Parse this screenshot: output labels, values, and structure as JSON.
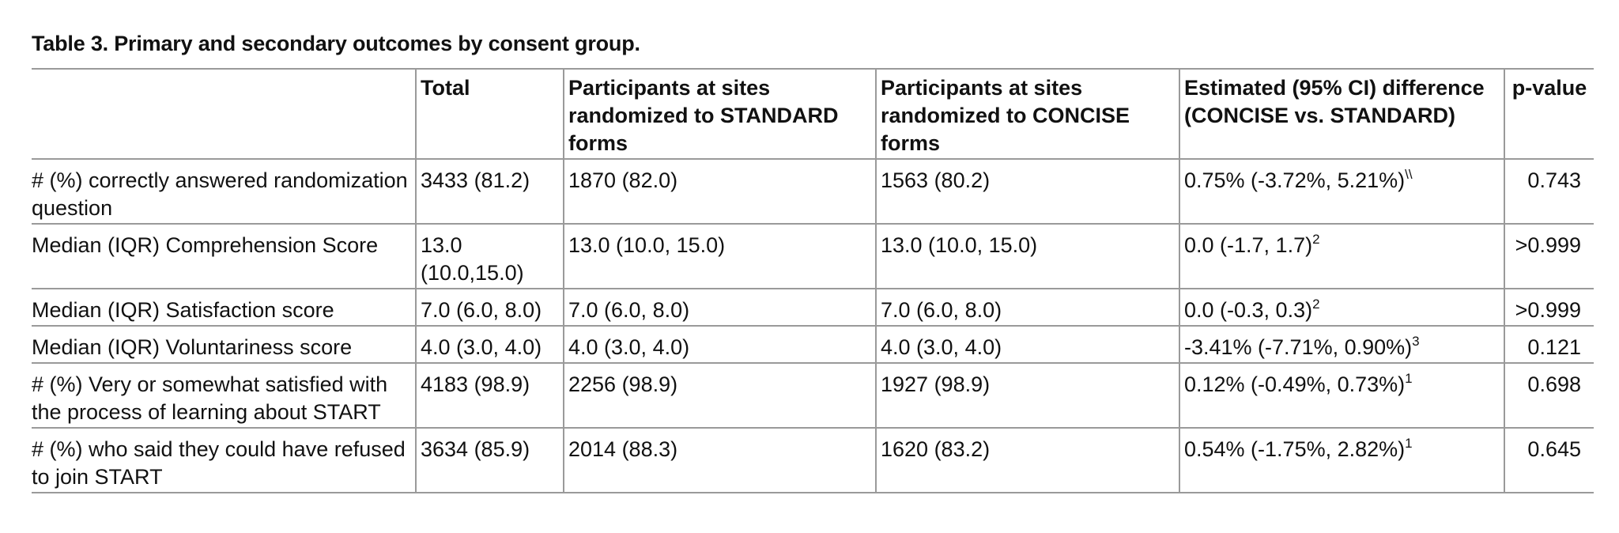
{
  "table": {
    "caption": "Table 3.  Primary and secondary outcomes by consent group.",
    "columns": [
      "",
      "Total",
      "Participants at sites randomized to STANDARD forms",
      "Participants at sites randomized to CONCISE forms",
      "Estimated (95% CI) difference (CONCISE vs. STANDARD)",
      "p-value"
    ],
    "rows": [
      {
        "label": "# (%) correctly answered randomization question",
        "total": "3433 (81.2)",
        "standard": "1870 (82.0)",
        "concise": "1563 (80.2)",
        "difference": "0.75% (-3.72%, 5.21%)",
        "difference_note": "\\\\",
        "p_value": "0.743"
      },
      {
        "label": "Median (IQR) Comprehension Score",
        "total": "13.0 (10.0,15.0)",
        "standard": "13.0 (10.0, 15.0)",
        "concise": "13.0 (10.0, 15.0)",
        "difference": "0.0 (-1.7, 1.7)",
        "difference_note": "2",
        "p_value": ">0.999"
      },
      {
        "label": "Median (IQR) Satisfaction score",
        "total": "7.0 (6.0, 8.0)",
        "standard": "7.0 (6.0, 8.0)",
        "concise": "7.0 (6.0, 8.0)",
        "difference": "0.0 (-0.3, 0.3)",
        "difference_note": "2",
        "p_value": ">0.999"
      },
      {
        "label": "Median (IQR) Voluntariness score",
        "total": "4.0 (3.0, 4.0)",
        "standard": "4.0 (3.0, 4.0)",
        "concise": "4.0 (3.0, 4.0)",
        "difference": "-3.41% (-7.71%, 0.90%)",
        "difference_note": "3",
        "p_value": "0.121"
      },
      {
        "label": "# (%) Very or somewhat satisfied with the process of learning about START",
        "total": "4183 (98.9)",
        "standard": "2256 (98.9)",
        "concise": "1927 (98.9)",
        "difference": "0.12% (-0.49%, 0.73%)",
        "difference_note": "1",
        "p_value": "0.698"
      },
      {
        "label": "# (%) who said they could have refused to join START",
        "total": "3634 (85.9)",
        "standard": "2014 (88.3)",
        "concise": "1620 (83.2)",
        "difference": "0.54% (-1.75%, 2.82%)",
        "difference_note": "1",
        "p_value": "0.645"
      }
    ]
  }
}
